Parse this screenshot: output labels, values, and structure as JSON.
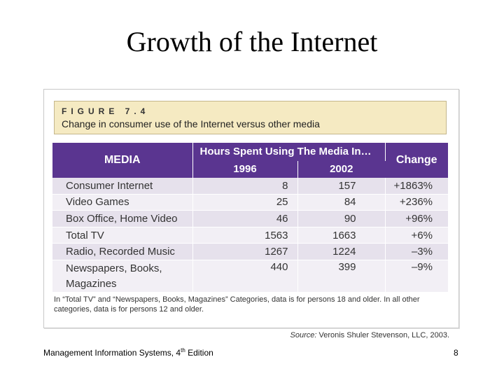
{
  "slide": {
    "title": "Growth of the Internet",
    "footer_left_prefix": "Management Information Systems, 4",
    "footer_left_sup": "th",
    "footer_left_suffix": " Edition",
    "page_number": "8"
  },
  "figure": {
    "label": "FIGURE 7.4",
    "caption": "Change in consumer use of the Internet versus other media",
    "note": "In “Total TV” and “Newspapers, Books, Magazines” Categories, data is for persons 18 and older. In all other categories, data is for persons 12 and older.",
    "source_prefix": "Source:",
    "source_text": "Veronis Shuler Stevenson, LLC, 2003."
  },
  "table": {
    "headers": {
      "media": "MEDIA",
      "hours": "Hours Spent Using The Media In…",
      "year1": "1996",
      "year2": "2002",
      "change": "Change"
    },
    "rows": [
      {
        "media": "Consumer Internet",
        "y1996": "8",
        "y2002": "157",
        "change": "+1863%"
      },
      {
        "media": "Video Games",
        "y1996": "25",
        "y2002": "84",
        "change": "+236%"
      },
      {
        "media": "Box Office, Home Video",
        "y1996": "46",
        "y2002": "90",
        "change": "+96%"
      },
      {
        "media": "Total TV",
        "y1996": "1563",
        "y2002": "1663",
        "change": "+6%"
      },
      {
        "media": "Radio, Recorded Music",
        "y1996": "1267",
        "y2002": "1224",
        "change": "–3%"
      },
      {
        "media_line1": "Newspapers, Books,",
        "media_line2": "Magazines",
        "y1996": "440",
        "y2002": "399",
        "change": "–9%"
      }
    ]
  }
}
